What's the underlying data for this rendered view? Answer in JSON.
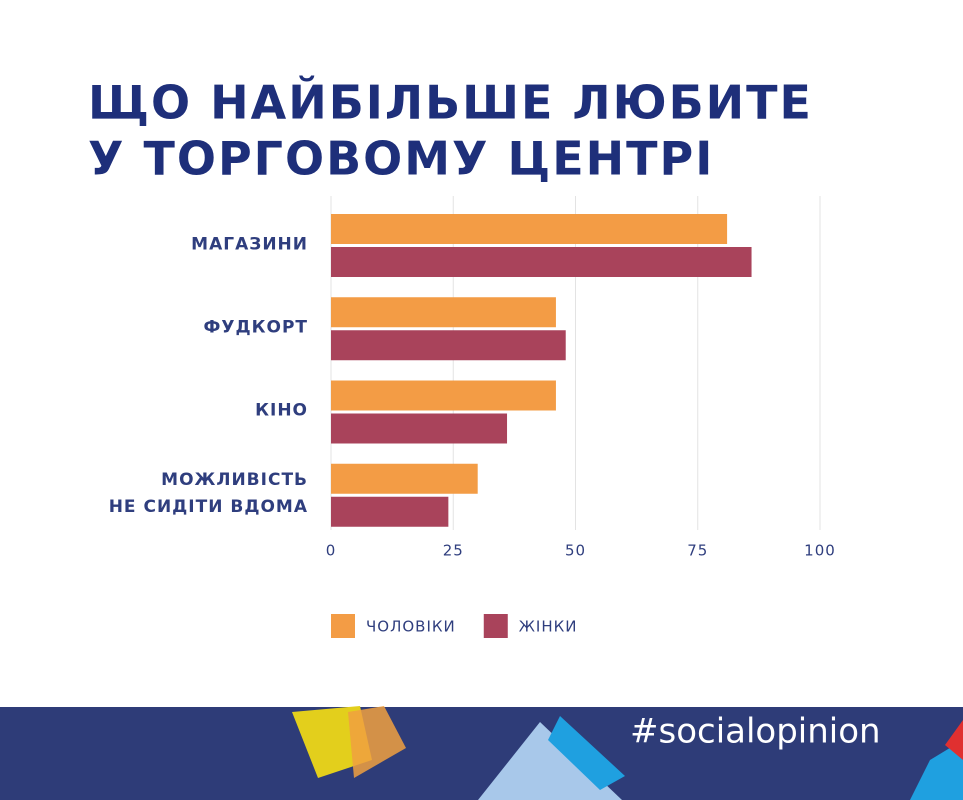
{
  "chart_data": {
    "type": "bar",
    "orientation": "horizontal",
    "title": [
      "ЩО НАЙБІЛЬШЕ ЛЮБИТЕ",
      "У ТОРГОВОМУ ЦЕНТРІ"
    ],
    "categories": [
      "МАГАЗИНИ",
      "ФУДКОРТ",
      "КІНО",
      "МОЖЛИВІСТЬ\nНЕ СИДІТИ ВДОМА"
    ],
    "series": [
      {
        "name": "ЧОЛОВІКИ",
        "color": "#f39c45",
        "values": [
          81,
          46,
          46,
          30
        ]
      },
      {
        "name": "ЖІНКИ",
        "color": "#a9435b",
        "values": [
          86,
          48,
          36,
          24
        ]
      }
    ],
    "xlim": [
      0,
      100
    ],
    "xticks": [
      0,
      25,
      50,
      75,
      100
    ],
    "grid": true,
    "legend": "bottom"
  },
  "hashtag": "#socialopinion"
}
